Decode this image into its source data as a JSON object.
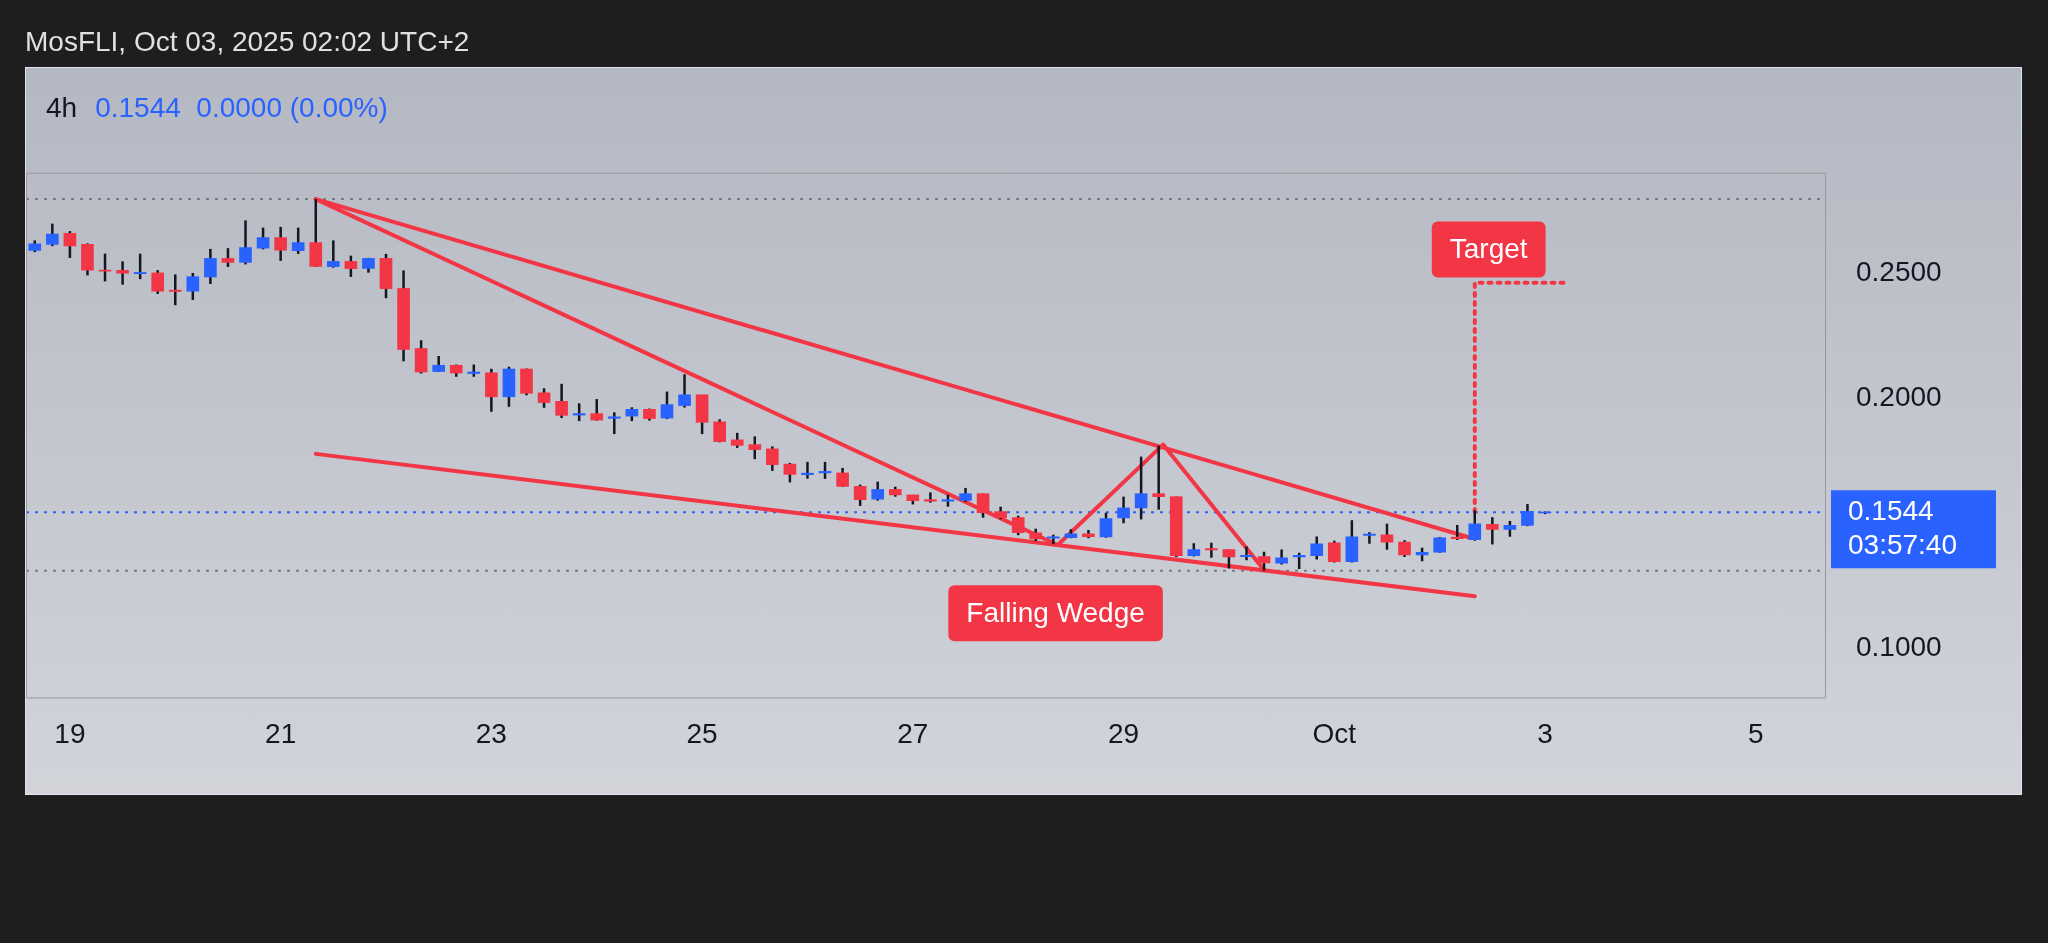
{
  "chart_data": {
    "type": "candlestick",
    "title": "4h",
    "subtitle": "0.1544  0.0000 (0.00%)",
    "annotations": [
      "MosFLI, Oct 03, 2025 02:02 UTC+2",
      "Target",
      "Falling Wedge"
    ],
    "x": [
      "2025-09-18T16:00",
      "2025-09-18T20:00",
      "2025-09-19T00:00",
      "2025-09-19T04:00",
      "2025-09-19T08:00",
      "2025-09-19T12:00",
      "2025-09-19T16:00",
      "2025-09-19T20:00",
      "2025-09-20T00:00",
      "2025-09-20T04:00",
      "2025-09-20T08:00",
      "2025-09-20T12:00",
      "2025-09-20T16:00",
      "2025-09-20T20:00",
      "2025-09-21T00:00",
      "2025-09-21T04:00",
      "2025-09-21T08:00",
      "2025-09-21T12:00",
      "2025-09-21T16:00",
      "2025-09-21T20:00",
      "2025-09-22T00:00",
      "2025-09-22T04:00",
      "2025-09-22T08:00",
      "2025-09-22T12:00",
      "2025-09-22T16:00",
      "2025-09-22T20:00",
      "2025-09-23T00:00",
      "2025-09-23T04:00",
      "2025-09-23T08:00",
      "2025-09-23T12:00",
      "2025-09-23T16:00",
      "2025-09-23T20:00",
      "2025-09-24T00:00",
      "2025-09-24T04:00",
      "2025-09-24T08:00",
      "2025-09-24T12:00",
      "2025-09-24T16:00",
      "2025-09-24T20:00",
      "2025-09-25T00:00",
      "2025-09-25T04:00",
      "2025-09-25T08:00",
      "2025-09-25T12:00",
      "2025-09-25T16:00",
      "2025-09-25T20:00",
      "2025-09-26T00:00",
      "2025-09-26T04:00",
      "2025-09-26T08:00",
      "2025-09-26T12:00",
      "2025-09-26T16:00",
      "2025-09-26T20:00",
      "2025-09-27T00:00",
      "2025-09-27T04:00",
      "2025-09-27T08:00",
      "2025-09-27T12:00",
      "2025-09-27T16:00",
      "2025-09-27T20:00",
      "2025-09-28T00:00",
      "2025-09-28T04:00",
      "2025-09-28T08:00",
      "2025-09-28T12:00",
      "2025-09-28T16:00",
      "2025-09-28T20:00",
      "2025-09-29T00:00",
      "2025-09-29T04:00",
      "2025-09-29T08:00",
      "2025-09-29T12:00",
      "2025-09-29T16:00",
      "2025-09-29T20:00",
      "2025-09-30T00:00",
      "2025-09-30T04:00",
      "2025-09-30T08:00",
      "2025-09-30T12:00",
      "2025-09-30T16:00",
      "2025-09-30T20:00",
      "2025-10-01T00:00",
      "2025-10-01T04:00",
      "2025-10-01T08:00",
      "2025-10-01T12:00",
      "2025-10-01T16:00",
      "2025-10-01T20:00",
      "2025-10-02T00:00",
      "2025-10-02T04:00",
      "2025-10-02T08:00",
      "2025-10-02T12:00",
      "2025-10-02T16:00",
      "2025-10-02T20:00",
      "2025-10-03T00:00"
    ],
    "ohlc": [
      [
        0.259,
        0.263,
        0.2583,
        0.2616
      ],
      [
        0.2614,
        0.2697,
        0.2607,
        0.2655
      ],
      [
        0.2658,
        0.2667,
        0.256,
        0.2608
      ],
      [
        0.2614,
        0.2618,
        0.249,
        0.2511
      ],
      [
        0.2511,
        0.2577,
        0.2466,
        0.2507
      ],
      [
        0.251,
        0.2546,
        0.2453,
        0.2499
      ],
      [
        0.2497,
        0.2577,
        0.2475,
        0.2502
      ],
      [
        0.25,
        0.2511,
        0.2416,
        0.2427
      ],
      [
        0.2431,
        0.2494,
        0.2371,
        0.2426
      ],
      [
        0.2427,
        0.25,
        0.2392,
        0.2485
      ],
      [
        0.2484,
        0.2596,
        0.2456,
        0.2558
      ],
      [
        0.2558,
        0.2599,
        0.2524,
        0.2542
      ],
      [
        0.2542,
        0.271,
        0.2534,
        0.2601
      ],
      [
        0.2599,
        0.2681,
        0.2594,
        0.2641
      ],
      [
        0.2641,
        0.2684,
        0.2548,
        0.2591
      ],
      [
        0.2589,
        0.2681,
        0.2576,
        0.2621
      ],
      [
        0.2621,
        0.2795,
        0.2524,
        0.2526
      ],
      [
        0.2525,
        0.263,
        0.2521,
        0.2546
      ],
      [
        0.2546,
        0.2569,
        0.2484,
        0.2517
      ],
      [
        0.2518,
        0.256,
        0.2501,
        0.2558
      ],
      [
        0.2558,
        0.2576,
        0.2399,
        0.2437
      ],
      [
        0.2438,
        0.251,
        0.2147,
        0.2194
      ],
      [
        0.2198,
        0.2231,
        0.2098,
        0.2104
      ],
      [
        0.2106,
        0.2168,
        0.2104,
        0.2131
      ],
      [
        0.2131,
        0.2134,
        0.2085,
        0.21
      ],
      [
        0.2098,
        0.2134,
        0.2085,
        0.2104
      ],
      [
        0.2101,
        0.2117,
        0.1945,
        0.2005
      ],
      [
        0.2005,
        0.2125,
        0.1965,
        0.2116
      ],
      [
        0.2116,
        0.2118,
        0.2011,
        0.2019
      ],
      [
        0.2021,
        0.2039,
        0.1961,
        0.1982
      ],
      [
        0.1987,
        0.2057,
        0.192,
        0.1931
      ],
      [
        0.1932,
        0.1979,
        0.1908,
        0.1938
      ],
      [
        0.1938,
        0.1996,
        0.191,
        0.1912
      ],
      [
        0.1919,
        0.1943,
        0.1856,
        0.1925
      ],
      [
        0.1928,
        0.1963,
        0.1908,
        0.1955
      ],
      [
        0.1955,
        0.1958,
        0.191,
        0.1918
      ],
      [
        0.192,
        0.2026,
        0.1916,
        0.1974
      ],
      [
        0.197,
        0.2095,
        0.1962,
        0.2013
      ],
      [
        0.2013,
        0.2013,
        0.1856,
        0.1903
      ],
      [
        0.1905,
        0.1915,
        0.1823,
        0.1826
      ],
      [
        0.1833,
        0.1861,
        0.1801,
        0.1811
      ],
      [
        0.1814,
        0.1847,
        0.1756,
        0.1794
      ],
      [
        0.1797,
        0.1807,
        0.1709,
        0.1734
      ],
      [
        0.1736,
        0.1741,
        0.1663,
        0.1695
      ],
      [
        0.1694,
        0.1745,
        0.1678,
        0.17
      ],
      [
        0.1701,
        0.1745,
        0.1677,
        0.1707
      ],
      [
        0.1701,
        0.1721,
        0.1645,
        0.1647
      ],
      [
        0.1647,
        0.1654,
        0.1569,
        0.1594
      ],
      [
        0.1596,
        0.1666,
        0.159,
        0.1635
      ],
      [
        0.1635,
        0.1646,
        0.1606,
        0.1613
      ],
      [
        0.1613,
        0.1613,
        0.1575,
        0.159
      ],
      [
        0.1594,
        0.1623,
        0.1582,
        0.1588
      ],
      [
        0.1588,
        0.1614,
        0.1566,
        0.1594
      ],
      [
        0.1591,
        0.1641,
        0.1585,
        0.1618
      ],
      [
        0.1618,
        0.1618,
        0.1522,
        0.1542
      ],
      [
        0.1546,
        0.1566,
        0.1516,
        0.1522
      ],
      [
        0.1522,
        0.153,
        0.1452,
        0.1462
      ],
      [
        0.1462,
        0.1478,
        0.1428,
        0.1437
      ],
      [
        0.144,
        0.1454,
        0.1416,
        0.1446
      ],
      [
        0.1442,
        0.1476,
        0.144,
        0.1458
      ],
      [
        0.1458,
        0.1473,
        0.144,
        0.1446
      ],
      [
        0.1445,
        0.1542,
        0.1442,
        0.1518
      ],
      [
        0.1521,
        0.1606,
        0.15,
        0.1561
      ],
      [
        0.1561,
        0.1766,
        0.1515,
        0.1618
      ],
      [
        0.1618,
        0.181,
        0.1554,
        0.1606
      ],
      [
        0.1606,
        0.1606,
        0.1365,
        0.137
      ],
      [
        0.137,
        0.142,
        0.1367,
        0.1395
      ],
      [
        0.1399,
        0.1422,
        0.1362,
        0.1393
      ],
      [
        0.1395,
        0.1395,
        0.1319,
        0.1365
      ],
      [
        0.1366,
        0.1407,
        0.1352,
        0.1372
      ],
      [
        0.1367,
        0.1386,
        0.131,
        0.1341
      ],
      [
        0.134,
        0.1395,
        0.1335,
        0.1362
      ],
      [
        0.1365,
        0.1382,
        0.1317,
        0.1372
      ],
      [
        0.137,
        0.1447,
        0.1355,
        0.1418
      ],
      [
        0.1422,
        0.143,
        0.1343,
        0.1346
      ],
      [
        0.1346,
        0.1512,
        0.1343,
        0.1446
      ],
      [
        0.1451,
        0.1464,
        0.1418,
        0.1457
      ],
      [
        0.1454,
        0.1498,
        0.1394,
        0.1424
      ],
      [
        0.1425,
        0.1432,
        0.1365,
        0.1373
      ],
      [
        0.1373,
        0.1402,
        0.1348,
        0.1384
      ],
      [
        0.1384,
        0.1445,
        0.1382,
        0.1442
      ],
      [
        0.1445,
        0.1493,
        0.1433,
        0.1438
      ],
      [
        0.1434,
        0.1551,
        0.143,
        0.1497
      ],
      [
        0.1495,
        0.1524,
        0.1415,
        0.1475
      ],
      [
        0.1475,
        0.1509,
        0.1446,
        0.1491
      ],
      [
        0.1491,
        0.1577,
        0.1488,
        0.1547
      ],
      [
        0.1541,
        0.1547,
        0.1536,
        0.1544
      ]
    ],
    "colors": [
      "#2962ff",
      "#2962ff",
      "#f23645",
      "#f23645",
      "#f23645",
      "#f23645",
      "#2962ff",
      "#f23645",
      "#f23645",
      "#2962ff",
      "#2962ff",
      "#f23645",
      "#2962ff",
      "#2962ff",
      "#f23645",
      "#2962ff",
      "#f23645",
      "#2962ff",
      "#f23645",
      "#2962ff",
      "#f23645",
      "#f23645",
      "#f23645",
      "#2962ff",
      "#f23645",
      "#2962ff",
      "#f23645",
      "#2962ff",
      "#f23645",
      "#f23645",
      "#f23645",
      "#2962ff",
      "#f23645",
      "#2962ff",
      "#2962ff",
      "#f23645",
      "#2962ff",
      "#2962ff",
      "#f23645",
      "#f23645",
      "#f23645",
      "#f23645",
      "#f23645",
      "#f23645",
      "#2962ff",
      "#2962ff",
      "#f23645",
      "#f23645",
      "#2962ff",
      "#f23645",
      "#f23645",
      "#f23645",
      "#2962ff",
      "#2962ff",
      "#f23645",
      "#f23645",
      "#f23645",
      "#f23645",
      "#2962ff",
      "#2962ff",
      "#f23645",
      "#2962ff",
      "#2962ff",
      "#2962ff",
      "#f23645",
      "#f23645",
      "#2962ff",
      "#f23645",
      "#f23645",
      "#2962ff",
      "#f23645",
      "#2962ff",
      "#2962ff",
      "#2962ff",
      "#f23645",
      "#2962ff",
      "#2962ff",
      "#f23645",
      "#f23645",
      "#2962ff",
      "#2962ff",
      "#f23645",
      "#2962ff",
      "#f23645",
      "#2962ff",
      "#2962ff",
      "#2962ff"
    ],
    "series": [
      {
        "type": "line",
        "color": "#f23645",
        "x": [
          "2025-09-21T08:00",
          "2025-10-02T07:00"
        ],
        "values": [
          0.2795,
          0.1442
        ]
      },
      {
        "type": "line",
        "color": "#f23645",
        "x": [
          "2025-09-21T08:00",
          "2025-09-28T09:00"
        ],
        "values": [
          0.2795,
          0.1413
        ]
      },
      {
        "type": "line",
        "color": "#f23645",
        "x": [
          "2025-09-21T08:00",
          "2025-10-02T08:00"
        ],
        "values": [
          0.1777,
          0.1208
        ]
      },
      {
        "type": "line",
        "color": "#f23645",
        "x": [
          "2025-09-28T09:00",
          "2025-09-29T09:00",
          "2025-09-30T08:00"
        ],
        "values": [
          0.1413,
          0.1814,
          0.1313
        ]
      },
      {
        "type": "line",
        "color": "#f23645",
        "line_style": "dotted",
        "x": [
          "2025-10-02T08:00",
          "2025-10-02T08:00",
          "2025-10-03T05:00"
        ],
        "values": [
          0.1545,
          0.2461,
          0.2461
        ]
      }
    ],
    "ref_lines": [
      {
        "axis": "y",
        "value": 0.2795,
        "color": "#787b86",
        "line_style": "dotted"
      },
      {
        "axis": "y",
        "value": 0.1544,
        "label": "0.1544 03:57:40",
        "color": "#2962ff",
        "line_style": "dotted"
      },
      {
        "axis": "y",
        "value": 0.131,
        "color": "#787b86",
        "line_style": "dotted"
      }
    ],
    "xlim": [
      "2025-09-18T14:00",
      "2025-10-05T16:00"
    ],
    "xticks": [
      {
        "value": "2025-09-19",
        "label": "19"
      },
      {
        "value": "2025-09-21",
        "label": "21"
      },
      {
        "value": "2025-09-23",
        "label": "23"
      },
      {
        "value": "2025-09-25",
        "label": "25"
      },
      {
        "value": "2025-09-27",
        "label": "27"
      },
      {
        "value": "2025-09-29",
        "label": "29"
      },
      {
        "value": "2025-10-01",
        "label": "Oct"
      },
      {
        "value": "2025-10-03",
        "label": "3"
      },
      {
        "value": "2025-10-05",
        "label": "5"
      }
    ],
    "ylim": [
      0.08,
      0.29
    ],
    "yticks": [
      {
        "value": 0.1,
        "label": "0.1000"
      },
      {
        "value": 0.2,
        "label": "0.2000"
      },
      {
        "value": 0.25,
        "label": "0.2500"
      }
    ]
  }
}
